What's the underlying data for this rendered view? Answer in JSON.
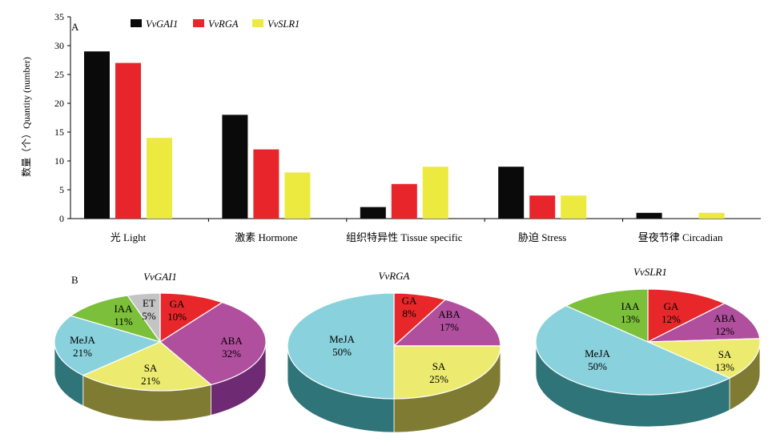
{
  "panel_a_letter": "A",
  "panel_b_letter": "B",
  "chart_data": [
    {
      "type": "bar",
      "ylabel": "数量（个）Quantity (number)",
      "ylim": [
        0,
        35
      ],
      "yticks": [
        "0",
        "5",
        "10",
        "15",
        "20",
        "25",
        "30",
        "35"
      ],
      "categories": [
        "光 Light",
        "激素 Hormone",
        "组织特异性 Tissue specific",
        "胁迫 Stress",
        "昼夜节律 Circadian"
      ],
      "series": [
        {
          "name": "VvGAI1",
          "color": "#0a0a0a",
          "values": [
            29,
            18,
            2,
            9,
            1
          ]
        },
        {
          "name": "VvRGA",
          "color": "#e8252a",
          "values": [
            27,
            12,
            6,
            4,
            0
          ]
        },
        {
          "name": "VvSLR1",
          "color": "#ecea3f",
          "values": [
            14,
            8,
            9,
            4,
            1
          ]
        }
      ],
      "legend_position": "top"
    },
    {
      "type": "pie",
      "title": "VvGAI1",
      "slices": [
        {
          "label": "GA",
          "pct": "10%",
          "value": 10,
          "color": "#e8272a",
          "side": "#8e1a1c"
        },
        {
          "label": "ABA",
          "pct": "32%",
          "value": 32,
          "color": "#b04f9d",
          "side": "#6e2a72"
        },
        {
          "label": "SA",
          "pct": "21%",
          "value": 21,
          "color": "#eceb6f",
          "side": "#7f7b33"
        },
        {
          "label": "MeJA",
          "pct": "21%",
          "value": 21,
          "color": "#89d1dc",
          "side": "#2e7478"
        },
        {
          "label": "IAA",
          "pct": "11%",
          "value": 11,
          "color": "#7cbf3a",
          "side": "#4a7a26"
        },
        {
          "label": "ET",
          "pct": "5%",
          "value": 5,
          "color": "#c4c4c4",
          "side": "#777777"
        }
      ]
    },
    {
      "type": "pie",
      "title": "VvRGA",
      "slices": [
        {
          "label": "GA",
          "pct": "8%",
          "value": 8,
          "color": "#e8272a",
          "side": "#8e1a1c"
        },
        {
          "label": "ABA",
          "pct": "17%",
          "value": 17,
          "color": "#b04f9d",
          "side": "#6e2a72"
        },
        {
          "label": "SA",
          "pct": "25%",
          "value": 25,
          "color": "#eceb6f",
          "side": "#7f7b33"
        },
        {
          "label": "MeJA",
          "pct": "50%",
          "value": 50,
          "color": "#89d1dc",
          "side": "#2e7478"
        }
      ]
    },
    {
      "type": "pie",
      "title": "VvSLR1",
      "slices": [
        {
          "label": "GA",
          "pct": "12%",
          "value": 12,
          "color": "#e8272a",
          "side": "#8e1a1c"
        },
        {
          "label": "ABA",
          "pct": "12%",
          "value": 12,
          "color": "#b04f9d",
          "side": "#6e2a72"
        },
        {
          "label": "SA",
          "pct": "13%",
          "value": 13,
          "color": "#eceb6f",
          "side": "#7f7b33"
        },
        {
          "label": "MeJA",
          "pct": "50%",
          "value": 50,
          "color": "#89d1dc",
          "side": "#2e7478"
        },
        {
          "label": "IAA",
          "pct": "13%",
          "value": 13,
          "color": "#7cbf3a",
          "side": "#4a7a26"
        }
      ]
    }
  ]
}
